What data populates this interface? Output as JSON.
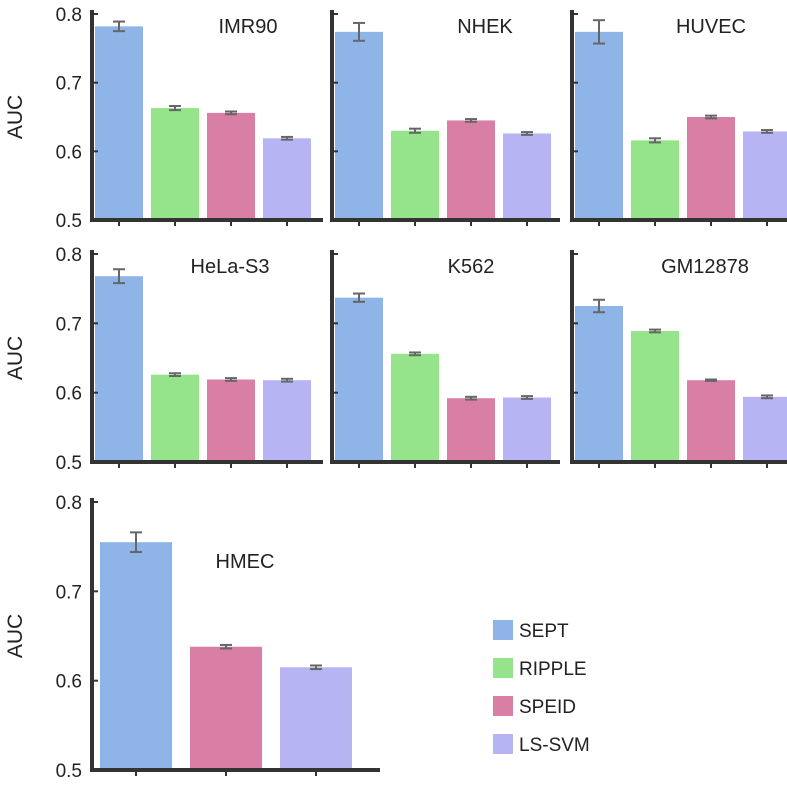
{
  "legend": {
    "items": [
      {
        "label": "SEPT",
        "color": "#8fb5e8"
      },
      {
        "label": "RIPPLE",
        "color": "#95e48c"
      },
      {
        "label": "SPEID",
        "color": "#d97ea5"
      },
      {
        "label": "LS-SVM",
        "color": "#b7b4f3"
      }
    ]
  },
  "chart_data": [
    {
      "type": "bar",
      "title": "IMR90",
      "ylabel": "AUC",
      "ylim": [
        0.5,
        0.8
      ],
      "yticks": [
        "0.5",
        "0.6",
        "0.7",
        "0.8"
      ],
      "categories": [
        "SEPT",
        "RIPPLE",
        "SPEID",
        "LS-SVM"
      ],
      "values": [
        0.782,
        0.663,
        0.656,
        0.619
      ],
      "errors": [
        0.007,
        0.003,
        0.002,
        0.002
      ]
    },
    {
      "type": "bar",
      "title": "NHEK",
      "ylabel": "",
      "ylim": [
        0.5,
        0.8
      ],
      "yticks": [
        "",
        "",
        "",
        ""
      ],
      "categories": [
        "SEPT",
        "RIPPLE",
        "SPEID",
        "LS-SVM"
      ],
      "values": [
        0.774,
        0.63,
        0.645,
        0.626
      ],
      "errors": [
        0.013,
        0.003,
        0.002,
        0.002
      ]
    },
    {
      "type": "bar",
      "title": "HUVEC",
      "ylabel": "",
      "ylim": [
        0.5,
        0.8
      ],
      "yticks": [
        "",
        "",
        "",
        ""
      ],
      "categories": [
        "SEPT",
        "RIPPLE",
        "SPEID",
        "LS-SVM"
      ],
      "values": [
        0.774,
        0.616,
        0.65,
        0.629
      ],
      "errors": [
        0.017,
        0.003,
        0.002,
        0.002
      ]
    },
    {
      "type": "bar",
      "title": "HeLa-S3",
      "ylabel": "AUC",
      "ylim": [
        0.5,
        0.8
      ],
      "yticks": [
        "0.5",
        "0.6",
        "0.7",
        "0.8"
      ],
      "categories": [
        "SEPT",
        "RIPPLE",
        "SPEID",
        "LS-SVM"
      ],
      "values": [
        0.768,
        0.626,
        0.619,
        0.618
      ],
      "errors": [
        0.01,
        0.002,
        0.002,
        0.002
      ]
    },
    {
      "type": "bar",
      "title": "K562",
      "ylabel": "",
      "ylim": [
        0.5,
        0.8
      ],
      "yticks": [
        "",
        "",
        "",
        ""
      ],
      "categories": [
        "SEPT",
        "RIPPLE",
        "SPEID",
        "LS-SVM"
      ],
      "values": [
        0.737,
        0.656,
        0.592,
        0.593
      ],
      "errors": [
        0.006,
        0.002,
        0.002,
        0.002
      ]
    },
    {
      "type": "bar",
      "title": "GM12878",
      "ylabel": "",
      "ylim": [
        0.5,
        0.8
      ],
      "yticks": [
        "",
        "",
        "",
        ""
      ],
      "categories": [
        "SEPT",
        "RIPPLE",
        "SPEID",
        "LS-SVM"
      ],
      "values": [
        0.725,
        0.689,
        0.618,
        0.594
      ],
      "errors": [
        0.009,
        0.002,
        0.001,
        0.002
      ]
    },
    {
      "type": "bar",
      "title": "HMEC",
      "ylabel": "AUC",
      "ylim": [
        0.5,
        0.8
      ],
      "yticks": [
        "0.5",
        "0.6",
        "0.7",
        "0.8"
      ],
      "categories": [
        "SEPT",
        "SPEID",
        "LS-SVM"
      ],
      "values": [
        0.755,
        0.638,
        0.615
      ],
      "errors": [
        0.011,
        0.002,
        0.002
      ]
    }
  ]
}
